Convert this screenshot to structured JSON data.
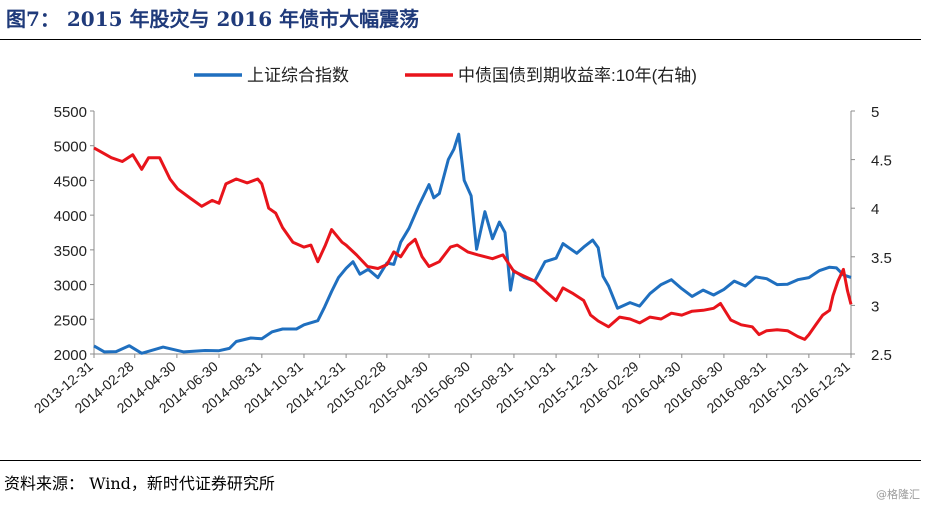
{
  "figure": {
    "title": "图7：  2015 年股灾与 2016 年债市大幅震荡",
    "source": "资料来源：  Wind，新时代证券研究所",
    "watermark": "@格隆汇"
  },
  "chart_data": {
    "type": "line",
    "title": "",
    "xlabel": "",
    "ylabel": "",
    "y2label": "",
    "x_tick_labels": [
      "2013-12-31",
      "2014-02-28",
      "2014-04-30",
      "2014-06-30",
      "2014-08-31",
      "2014-10-31",
      "2014-12-31",
      "2015-02-28",
      "2015-04-30",
      "2015-06-30",
      "2015-08-31",
      "2015-10-31",
      "2015-12-31",
      "2016-02-29",
      "2016-04-30",
      "2016-06-30",
      "2016-08-31",
      "2016-10-31",
      "2016-12-31"
    ],
    "y_left": {
      "ticks": [
        "2000",
        "2500",
        "3000",
        "3500",
        "4000",
        "4500",
        "5000",
        "5500"
      ],
      "lim": [
        2000,
        5500
      ]
    },
    "y_right": {
      "ticks": [
        "2.5",
        "3",
        "3.5",
        "4",
        "4.5",
        "5"
      ],
      "lim": [
        2.5,
        5
      ]
    },
    "grid": false,
    "legend_position": "top",
    "series": [
      {
        "name": "上证综合指数",
        "axis": "left",
        "color": "#1f6fbf",
        "points": [
          [
            "2013-12-31",
            2116
          ],
          [
            "2014-01-15",
            2030
          ],
          [
            "2014-02-01",
            2035
          ],
          [
            "2014-02-20",
            2120
          ],
          [
            "2014-03-10",
            2010
          ],
          [
            "2014-04-10",
            2100
          ],
          [
            "2014-05-10",
            2030
          ],
          [
            "2014-06-10",
            2050
          ],
          [
            "2014-06-30",
            2048
          ],
          [
            "2014-07-15",
            2080
          ],
          [
            "2014-07-25",
            2180
          ],
          [
            "2014-08-15",
            2230
          ],
          [
            "2014-08-31",
            2220
          ],
          [
            "2014-09-15",
            2320
          ],
          [
            "2014-09-30",
            2360
          ],
          [
            "2014-10-20",
            2360
          ],
          [
            "2014-10-31",
            2420
          ],
          [
            "2014-11-20",
            2480
          ],
          [
            "2014-11-30",
            2680
          ],
          [
            "2014-12-10",
            2900
          ],
          [
            "2014-12-20",
            3100
          ],
          [
            "2014-12-31",
            3235
          ],
          [
            "2015-01-10",
            3330
          ],
          [
            "2015-01-20",
            3150
          ],
          [
            "2015-02-01",
            3220
          ],
          [
            "2015-02-15",
            3100
          ],
          [
            "2015-02-28",
            3310
          ],
          [
            "2015-03-10",
            3290
          ],
          [
            "2015-03-20",
            3610
          ],
          [
            "2015-04-01",
            3810
          ],
          [
            "2015-04-15",
            4130
          ],
          [
            "2015-04-30",
            4440
          ],
          [
            "2015-05-07",
            4250
          ],
          [
            "2015-05-15",
            4310
          ],
          [
            "2015-05-28",
            4800
          ],
          [
            "2015-06-05",
            4950
          ],
          [
            "2015-06-12",
            5166
          ],
          [
            "2015-06-20",
            4500
          ],
          [
            "2015-06-30",
            4280
          ],
          [
            "2015-07-08",
            3510
          ],
          [
            "2015-07-20",
            4050
          ],
          [
            "2015-07-31",
            3660
          ],
          [
            "2015-08-10",
            3900
          ],
          [
            "2015-08-18",
            3750
          ],
          [
            "2015-08-26",
            2920
          ],
          [
            "2015-08-31",
            3200
          ],
          [
            "2015-09-15",
            3100
          ],
          [
            "2015-09-30",
            3050
          ],
          [
            "2015-10-15",
            3330
          ],
          [
            "2015-10-31",
            3380
          ],
          [
            "2015-11-10",
            3590
          ],
          [
            "2015-11-30",
            3450
          ],
          [
            "2015-12-10",
            3540
          ],
          [
            "2015-12-23",
            3640
          ],
          [
            "2015-12-31",
            3530
          ],
          [
            "2016-01-07",
            3120
          ],
          [
            "2016-01-15",
            2980
          ],
          [
            "2016-01-28",
            2660
          ],
          [
            "2016-02-15",
            2740
          ],
          [
            "2016-02-29",
            2690
          ],
          [
            "2016-03-15",
            2870
          ],
          [
            "2016-03-31",
            3000
          ],
          [
            "2016-04-15",
            3070
          ],
          [
            "2016-04-30",
            2940
          ],
          [
            "2016-05-15",
            2830
          ],
          [
            "2016-05-31",
            2920
          ],
          [
            "2016-06-15",
            2850
          ],
          [
            "2016-06-30",
            2930
          ],
          [
            "2016-07-15",
            3050
          ],
          [
            "2016-07-31",
            2980
          ],
          [
            "2016-08-15",
            3110
          ],
          [
            "2016-08-31",
            3085
          ],
          [
            "2016-09-15",
            3000
          ],
          [
            "2016-09-30",
            3005
          ],
          [
            "2016-10-15",
            3070
          ],
          [
            "2016-10-31",
            3100
          ],
          [
            "2016-11-15",
            3200
          ],
          [
            "2016-11-30",
            3250
          ],
          [
            "2016-12-10",
            3240
          ],
          [
            "2016-12-20",
            3140
          ],
          [
            "2016-12-31",
            3104
          ]
        ]
      },
      {
        "name": "中债国债到期收益率:10年(右轴)",
        "axis": "right",
        "color": "#e8141b",
        "points": [
          [
            "2013-12-31",
            4.62
          ],
          [
            "2014-01-10",
            4.58
          ],
          [
            "2014-01-25",
            4.52
          ],
          [
            "2014-02-10",
            4.48
          ],
          [
            "2014-02-25",
            4.55
          ],
          [
            "2014-03-10",
            4.4
          ],
          [
            "2014-03-20",
            4.52
          ],
          [
            "2014-04-05",
            4.52
          ],
          [
            "2014-04-20",
            4.3
          ],
          [
            "2014-05-01",
            4.2
          ],
          [
            "2014-05-20",
            4.1
          ],
          [
            "2014-06-05",
            4.02
          ],
          [
            "2014-06-20",
            4.08
          ],
          [
            "2014-06-30",
            4.05
          ],
          [
            "2014-07-10",
            4.25
          ],
          [
            "2014-07-25",
            4.3
          ],
          [
            "2014-08-10",
            4.26
          ],
          [
            "2014-08-25",
            4.3
          ],
          [
            "2014-08-31",
            4.25
          ],
          [
            "2014-09-10",
            4.0
          ],
          [
            "2014-09-20",
            3.95
          ],
          [
            "2014-09-30",
            3.8
          ],
          [
            "2014-10-15",
            3.65
          ],
          [
            "2014-10-31",
            3.6
          ],
          [
            "2014-11-10",
            3.62
          ],
          [
            "2014-11-20",
            3.45
          ],
          [
            "2014-12-01",
            3.62
          ],
          [
            "2014-12-10",
            3.78
          ],
          [
            "2014-12-25",
            3.65
          ],
          [
            "2014-12-31",
            3.62
          ],
          [
            "2015-01-15",
            3.52
          ],
          [
            "2015-01-31",
            3.4
          ],
          [
            "2015-02-15",
            3.38
          ],
          [
            "2015-02-28",
            3.42
          ],
          [
            "2015-03-10",
            3.55
          ],
          [
            "2015-03-20",
            3.5
          ],
          [
            "2015-03-31",
            3.62
          ],
          [
            "2015-04-10",
            3.68
          ],
          [
            "2015-04-20",
            3.5
          ],
          [
            "2015-04-30",
            3.4
          ],
          [
            "2015-05-15",
            3.45
          ],
          [
            "2015-05-31",
            3.6
          ],
          [
            "2015-06-10",
            3.62
          ],
          [
            "2015-06-25",
            3.55
          ],
          [
            "2015-07-10",
            3.52
          ],
          [
            "2015-07-31",
            3.48
          ],
          [
            "2015-08-15",
            3.52
          ],
          [
            "2015-08-31",
            3.35
          ],
          [
            "2015-09-15",
            3.3
          ],
          [
            "2015-09-30",
            3.25
          ],
          [
            "2015-10-15",
            3.15
          ],
          [
            "2015-10-31",
            3.05
          ],
          [
            "2015-11-10",
            3.18
          ],
          [
            "2015-11-25",
            3.12
          ],
          [
            "2015-12-10",
            3.05
          ],
          [
            "2015-12-20",
            2.9
          ],
          [
            "2015-12-31",
            2.84
          ],
          [
            "2016-01-15",
            2.78
          ],
          [
            "2016-01-31",
            2.88
          ],
          [
            "2016-02-15",
            2.86
          ],
          [
            "2016-02-29",
            2.82
          ],
          [
            "2016-03-15",
            2.88
          ],
          [
            "2016-03-31",
            2.86
          ],
          [
            "2016-04-15",
            2.92
          ],
          [
            "2016-04-30",
            2.9
          ],
          [
            "2016-05-15",
            2.94
          ],
          [
            "2016-05-31",
            2.95
          ],
          [
            "2016-06-15",
            2.97
          ],
          [
            "2016-06-25",
            3.02
          ],
          [
            "2016-07-10",
            2.85
          ],
          [
            "2016-07-25",
            2.8
          ],
          [
            "2016-08-10",
            2.78
          ],
          [
            "2016-08-20",
            2.7
          ],
          [
            "2016-08-31",
            2.74
          ],
          [
            "2016-09-15",
            2.75
          ],
          [
            "2016-09-30",
            2.74
          ],
          [
            "2016-10-15",
            2.68
          ],
          [
            "2016-10-25",
            2.65
          ],
          [
            "2016-10-31",
            2.7
          ],
          [
            "2016-11-10",
            2.8
          ],
          [
            "2016-11-20",
            2.9
          ],
          [
            "2016-11-30",
            2.95
          ],
          [
            "2016-12-05",
            3.1
          ],
          [
            "2016-12-12",
            3.25
          ],
          [
            "2016-12-20",
            3.37
          ],
          [
            "2016-12-26",
            3.15
          ],
          [
            "2016-12-31",
            3.01
          ]
        ]
      }
    ]
  }
}
